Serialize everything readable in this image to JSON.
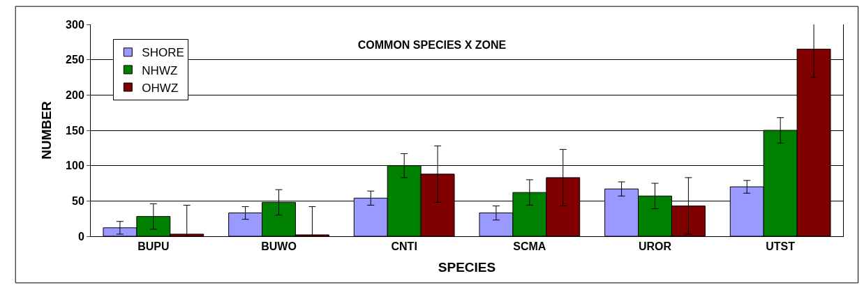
{
  "chart_data": {
    "type": "bar",
    "title": "COMMON SPECIES X ZONE",
    "xlabel": "SPECIES",
    "ylabel": "NUMBER",
    "categories": [
      "BUPU",
      "BUWO",
      "CNTI",
      "SCMA",
      "UROR",
      "UTST"
    ],
    "series": [
      {
        "name": "SHORE",
        "color": "#9999ff",
        "values": [
          12,
          33,
          54,
          33,
          67,
          70
        ],
        "errors": [
          9,
          9,
          10,
          10,
          10,
          9
        ]
      },
      {
        "name": "NHWZ",
        "color": "#008000",
        "values": [
          28,
          48,
          100,
          62,
          57,
          150
        ],
        "errors": [
          18,
          18,
          17,
          18,
          18,
          18
        ]
      },
      {
        "name": "OHWZ",
        "color": "#800000",
        "values": [
          3,
          2,
          88,
          83,
          43,
          265
        ],
        "errors": [
          41,
          40,
          40,
          40,
          40,
          40
        ]
      }
    ],
    "ylim": [
      0,
      300
    ],
    "yticks": [
      0,
      50,
      100,
      150,
      200,
      250,
      300
    ],
    "grid": "y",
    "legend": "top left"
  }
}
